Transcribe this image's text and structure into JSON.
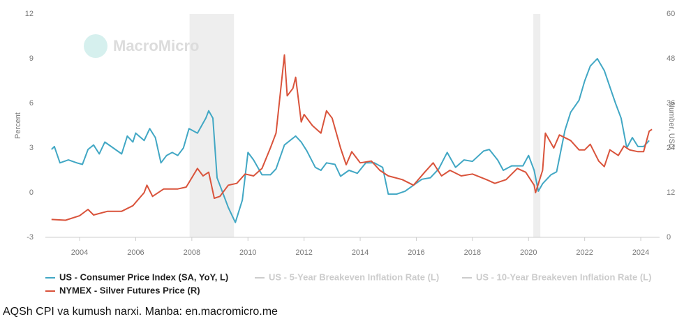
{
  "chart_data": {
    "type": "line",
    "watermark": "MacroMicro",
    "caption": "AQSh CPI va kumush narxi. Manba: en.macromicro.me",
    "ylabel": "Percent",
    "y2label": "Number, USD",
    "xlim": [
      2002.78,
      2024.67
    ],
    "xticks": [
      2004,
      2006,
      2008,
      2010,
      2012,
      2014,
      2016,
      2018,
      2020,
      2022,
      2024
    ],
    "ylim": [
      -3,
      12
    ],
    "yticks": [
      -3,
      0,
      3,
      6,
      9,
      12
    ],
    "y2lim": [
      0,
      60
    ],
    "y2ticks": [
      0,
      12,
      24,
      36,
      48,
      60
    ],
    "grid": false,
    "shaded_ranges": [
      [
        2007.92,
        2009.5
      ],
      [
        2020.17,
        2020.42
      ]
    ],
    "series": [
      {
        "name": "US - Consumer Price Index (SA, YoY, L)",
        "color": "#41a7c4",
        "visible": true,
        "x": [
          2003.0,
          2003.1,
          2003.3,
          2003.6,
          2003.9,
          2004.1,
          2004.3,
          2004.5,
          2004.7,
          2004.9,
          2005.2,
          2005.5,
          2005.7,
          2005.9,
          2006.0,
          2006.3,
          2006.5,
          2006.7,
          2006.9,
          2007.1,
          2007.3,
          2007.5,
          2007.7,
          2007.9,
          2008.2,
          2008.5,
          2008.6,
          2008.75,
          2008.9,
          2009.1,
          2009.3,
          2009.55,
          2009.8,
          2010.0,
          2010.2,
          2010.5,
          2010.8,
          2011.0,
          2011.3,
          2011.7,
          2011.9,
          2012.1,
          2012.4,
          2012.6,
          2012.8,
          2013.1,
          2013.3,
          2013.6,
          2013.9,
          2014.2,
          2014.5,
          2014.8,
          2015.0,
          2015.3,
          2015.6,
          2015.9,
          2016.2,
          2016.5,
          2016.8,
          2017.1,
          2017.4,
          2017.7,
          2018.0,
          2018.4,
          2018.6,
          2018.9,
          2019.1,
          2019.4,
          2019.8,
          2020.0,
          2020.2,
          2020.35,
          2020.5,
          2020.8,
          2021.0,
          2021.3,
          2021.5,
          2021.8,
          2022.0,
          2022.2,
          2022.45,
          2022.7,
          2022.9,
          2023.1,
          2023.3,
          2023.5,
          2023.7,
          2023.9,
          2024.1,
          2024.3
        ],
        "values": [
          2.9,
          3.1,
          2.0,
          2.2,
          2.0,
          1.9,
          2.9,
          3.2,
          2.6,
          3.4,
          3.0,
          2.6,
          3.8,
          3.4,
          4.0,
          3.5,
          4.3,
          3.7,
          2.0,
          2.5,
          2.7,
          2.5,
          3.0,
          4.3,
          4.0,
          5.0,
          5.5,
          5.0,
          1.0,
          0.0,
          -1.0,
          -2.0,
          -0.5,
          2.7,
          2.2,
          1.2,
          1.2,
          1.6,
          3.2,
          3.8,
          3.4,
          2.8,
          1.7,
          1.5,
          2.0,
          1.9,
          1.1,
          1.5,
          1.3,
          2.0,
          2.0,
          1.7,
          -0.1,
          -0.1,
          0.1,
          0.5,
          0.9,
          1.0,
          1.6,
          2.7,
          1.7,
          2.2,
          2.1,
          2.8,
          2.9,
          2.2,
          1.5,
          1.8,
          1.8,
          2.5,
          1.5,
          0.1,
          0.6,
          1.2,
          1.4,
          4.2,
          5.4,
          6.2,
          7.5,
          8.5,
          9.0,
          8.2,
          7.1,
          6.0,
          5.0,
          3.0,
          3.7,
          3.1,
          3.1,
          3.5
        ]
      },
      {
        "name": "US - 5-Year Breakeven Inflation Rate (L)",
        "color": "#cccccc",
        "visible": false
      },
      {
        "name": "US - 10-Year Breakeven Inflation Rate (L)",
        "color": "#cccccc",
        "visible": false
      },
      {
        "name": "NYMEX - Silver Futures Price (R)",
        "color": "#d9533b",
        "visible": true,
        "axis": "y2",
        "x": [
          2003.0,
          2003.5,
          2004.0,
          2004.3,
          2004.5,
          2005.0,
          2005.5,
          2005.9,
          2006.3,
          2006.4,
          2006.6,
          2007.0,
          2007.5,
          2007.8,
          2008.2,
          2008.4,
          2008.6,
          2008.8,
          2009.0,
          2009.3,
          2009.6,
          2009.9,
          2010.2,
          2010.5,
          2010.8,
          2011.0,
          2011.3,
          2011.4,
          2011.6,
          2011.7,
          2011.9,
          2012.0,
          2012.3,
          2012.6,
          2012.8,
          2013.0,
          2013.3,
          2013.5,
          2013.7,
          2014.0,
          2014.4,
          2014.7,
          2015.0,
          2015.5,
          2015.9,
          2016.3,
          2016.6,
          2016.9,
          2017.2,
          2017.6,
          2018.0,
          2018.5,
          2018.8,
          2019.2,
          2019.6,
          2019.9,
          2020.2,
          2020.25,
          2020.5,
          2020.6,
          2020.9,
          2021.1,
          2021.5,
          2021.8,
          2022.0,
          2022.2,
          2022.5,
          2022.7,
          2022.9,
          2023.2,
          2023.4,
          2023.6,
          2023.9,
          2024.1,
          2024.3,
          2024.4
        ],
        "values": [
          4.8,
          4.6,
          5.8,
          7.5,
          6.0,
          7.0,
          7.0,
          8.5,
          12.0,
          14.0,
          11.0,
          13.0,
          13.0,
          13.5,
          18.5,
          16.5,
          17.5,
          10.5,
          11.0,
          14.0,
          14.5,
          17.0,
          16.5,
          18.5,
          24.0,
          28.0,
          49.0,
          38.0,
          40.0,
          43.0,
          31.0,
          33.0,
          30.0,
          28.0,
          34.0,
          32.0,
          24.0,
          19.5,
          23.0,
          20.0,
          20.5,
          18.0,
          16.5,
          15.5,
          14.0,
          17.5,
          20.0,
          16.5,
          18.0,
          16.5,
          17.0,
          15.5,
          14.5,
          15.5,
          18.5,
          17.5,
          14.0,
          12.0,
          18.0,
          28.0,
          24.0,
          27.5,
          26.0,
          23.5,
          23.5,
          25.0,
          20.5,
          19.0,
          23.5,
          22.0,
          24.5,
          23.5,
          23.0,
          23.0,
          28.5,
          29.0
        ]
      }
    ]
  }
}
